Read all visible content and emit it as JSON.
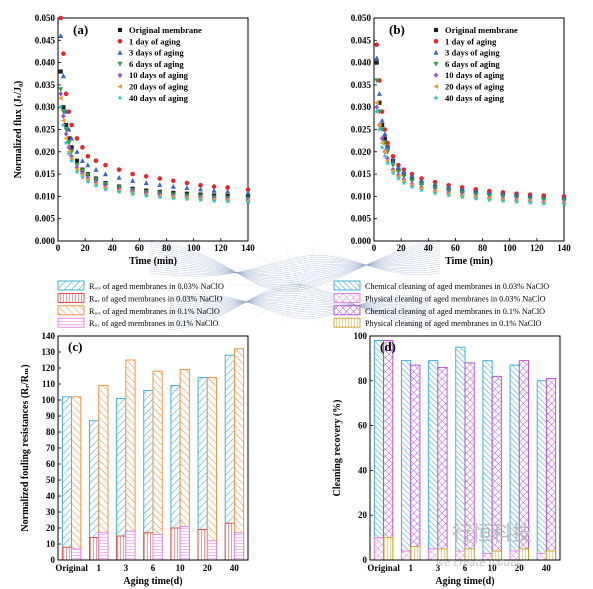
{
  "chart_data": [
    {
      "type": "scatter",
      "panel_label": "(a)",
      "xlabel": "Time (min)",
      "ylabel": "Normalized flux (Jₜ/J₀)",
      "xlim": [
        0,
        140
      ],
      "ylim": [
        0,
        0.05
      ],
      "xticks": [
        0,
        20,
        40,
        60,
        80,
        100,
        120,
        140
      ],
      "yticks": [
        0.0,
        0.005,
        0.01,
        0.015,
        0.02,
        0.025,
        0.03,
        0.035,
        0.04,
        0.045,
        0.05
      ],
      "yticklabels": [
        "0.000",
        "0.005",
        "0.010",
        "0.015",
        "0.020",
        "0.025",
        "0.030",
        "0.035",
        "0.040",
        "0.045",
        "0.050"
      ],
      "legend_position": "top-right",
      "series": [
        {
          "name": "Original membrane",
          "color": "#222222",
          "marker": "square",
          "x": [
            2,
            4,
            6,
            8,
            10,
            14,
            18,
            22,
            28,
            35,
            45,
            55,
            65,
            75,
            85,
            95,
            105,
            115,
            125,
            140
          ],
          "y": [
            0.038,
            0.03,
            0.026,
            0.023,
            0.021,
            0.018,
            0.016,
            0.015,
            0.014,
            0.013,
            0.0122,
            0.0117,
            0.0113,
            0.011,
            0.0108,
            0.0106,
            0.0104,
            0.0102,
            0.0101,
            0.01
          ]
        },
        {
          "name": "1 day of aging",
          "color": "#e8262a",
          "marker": "circle",
          "x": [
            2,
            4,
            6,
            8,
            10,
            14,
            18,
            22,
            28,
            35,
            45,
            55,
            65,
            75,
            85,
            95,
            105,
            115,
            125,
            140
          ],
          "y": [
            0.05,
            0.042,
            0.033,
            0.029,
            0.026,
            0.023,
            0.021,
            0.019,
            0.018,
            0.017,
            0.016,
            0.015,
            0.0145,
            0.014,
            0.0135,
            0.013,
            0.0125,
            0.0122,
            0.012,
            0.0115
          ]
        },
        {
          "name": "3 days of aging",
          "color": "#3366cc",
          "marker": "triangle",
          "x": [
            2,
            4,
            6,
            8,
            10,
            14,
            18,
            22,
            28,
            35,
            45,
            55,
            65,
            75,
            85,
            95,
            105,
            115,
            125,
            140
          ],
          "y": [
            0.046,
            0.037,
            0.029,
            0.025,
            0.023,
            0.02,
            0.018,
            0.017,
            0.016,
            0.015,
            0.0142,
            0.0135,
            0.013,
            0.0126,
            0.0122,
            0.0119,
            0.0116,
            0.0113,
            0.0111,
            0.0108
          ]
        },
        {
          "name": "6 days of aging",
          "color": "#2e9e4a",
          "marker": "triangle-down",
          "x": [
            2,
            4,
            6,
            8,
            10,
            14,
            18,
            22,
            28,
            35,
            45,
            55,
            65,
            75,
            85,
            95,
            105,
            115,
            125,
            140
          ],
          "y": [
            0.034,
            0.029,
            0.025,
            0.022,
            0.02,
            0.017,
            0.0158,
            0.0148,
            0.0138,
            0.0128,
            0.012,
            0.0114,
            0.011,
            0.0107,
            0.0104,
            0.0102,
            0.01,
            0.0098,
            0.0097,
            0.0095
          ]
        },
        {
          "name": "10 days of aging",
          "color": "#9b59c6",
          "marker": "diamond",
          "x": [
            2,
            4,
            6,
            8,
            10,
            14,
            18,
            22,
            28,
            35,
            45,
            55,
            65,
            75,
            85,
            95,
            105,
            115,
            125,
            140
          ],
          "y": [
            0.033,
            0.028,
            0.024,
            0.021,
            0.019,
            0.0165,
            0.0152,
            0.0142,
            0.0132,
            0.0123,
            0.0116,
            0.0111,
            0.0107,
            0.0104,
            0.0101,
            0.0099,
            0.0097,
            0.0095,
            0.0094,
            0.0092
          ]
        },
        {
          "name": "20 days of aging",
          "color": "#f0a030",
          "marker": "triangle-left",
          "x": [
            2,
            4,
            6,
            8,
            10,
            14,
            18,
            22,
            28,
            35,
            45,
            55,
            65,
            75,
            85,
            95,
            105,
            115,
            125,
            140
          ],
          "y": [
            0.032,
            0.027,
            0.023,
            0.02,
            0.0185,
            0.016,
            0.0148,
            0.0138,
            0.0128,
            0.012,
            0.0113,
            0.0108,
            0.0104,
            0.0101,
            0.0099,
            0.0097,
            0.0095,
            0.0093,
            0.0092,
            0.009
          ]
        },
        {
          "name": "40 days of aging",
          "color": "#27c4c4",
          "marker": "star",
          "x": [
            2,
            4,
            6,
            8,
            10,
            14,
            18,
            22,
            28,
            35,
            45,
            55,
            65,
            75,
            85,
            95,
            105,
            115,
            125,
            140
          ],
          "y": [
            0.03,
            0.026,
            0.022,
            0.0195,
            0.018,
            0.0155,
            0.0143,
            0.0133,
            0.0124,
            0.0116,
            0.011,
            0.0105,
            0.0101,
            0.0098,
            0.0096,
            0.0094,
            0.0092,
            0.009,
            0.0089,
            0.0087
          ]
        }
      ]
    },
    {
      "type": "scatter",
      "panel_label": "(b)",
      "xlabel": "Time (min)",
      "ylabel": "",
      "xlim": [
        0,
        140
      ],
      "ylim": [
        0,
        0.05
      ],
      "xticks": [
        0,
        20,
        40,
        60,
        80,
        100,
        120,
        140
      ],
      "yticks": [
        0.0,
        0.005,
        0.01,
        0.015,
        0.02,
        0.025,
        0.03,
        0.035,
        0.04,
        0.045,
        0.05
      ],
      "yticklabels": [
        "0.000",
        "0.005",
        "0.010",
        "0.015",
        "0.020",
        "0.025",
        "0.030",
        "0.035",
        "0.040",
        "0.045",
        "0.050"
      ],
      "legend_position": "top-right",
      "series": [
        {
          "name": "Original membrane",
          "color": "#222222",
          "marker": "square",
          "x": [
            2,
            4,
            6,
            8,
            10,
            14,
            18,
            22,
            28,
            35,
            45,
            55,
            65,
            75,
            85,
            95,
            105,
            115,
            125,
            140
          ],
          "y": [
            0.04,
            0.031,
            0.026,
            0.023,
            0.021,
            0.018,
            0.016,
            0.015,
            0.014,
            0.013,
            0.0122,
            0.0116,
            0.0112,
            0.0109,
            0.0107,
            0.0105,
            0.0103,
            0.0101,
            0.01,
            0.0098
          ]
        },
        {
          "name": "1 day of aging",
          "color": "#e8262a",
          "marker": "circle",
          "x": [
            2,
            4,
            6,
            8,
            10,
            14,
            18,
            22,
            28,
            35,
            45,
            55,
            65,
            75,
            85,
            95,
            105,
            115,
            125,
            140
          ],
          "y": [
            0.044,
            0.036,
            0.029,
            0.025,
            0.022,
            0.019,
            0.017,
            0.016,
            0.015,
            0.014,
            0.0132,
            0.0125,
            0.012,
            0.0116,
            0.0112,
            0.0109,
            0.0106,
            0.0104,
            0.0102,
            0.01
          ]
        },
        {
          "name": "3 days of aging",
          "color": "#3366cc",
          "marker": "triangle",
          "x": [
            2,
            4,
            6,
            8,
            10,
            14,
            18,
            22,
            28,
            35,
            45,
            55,
            65,
            75,
            85,
            95,
            105,
            115,
            125,
            140
          ],
          "y": [
            0.041,
            0.033,
            0.027,
            0.024,
            0.021,
            0.018,
            0.0165,
            0.0155,
            0.0145,
            0.0135,
            0.0126,
            0.012,
            0.0115,
            0.0111,
            0.0108,
            0.0105,
            0.0102,
            0.01,
            0.0098,
            0.0096
          ]
        },
        {
          "name": "6 days of aging",
          "color": "#2e9e4a",
          "marker": "triangle-down",
          "x": [
            2,
            4,
            6,
            8,
            10,
            14,
            18,
            22,
            28,
            35,
            45,
            55,
            65,
            75,
            85,
            95,
            105,
            115,
            125,
            140
          ],
          "y": [
            0.036,
            0.029,
            0.025,
            0.022,
            0.02,
            0.017,
            0.0155,
            0.0145,
            0.0135,
            0.0126,
            0.0118,
            0.0112,
            0.0108,
            0.0104,
            0.0101,
            0.0099,
            0.0096,
            0.0094,
            0.0092,
            0.009
          ]
        },
        {
          "name": "10 days of aging",
          "color": "#9b59c6",
          "marker": "diamond",
          "x": [
            2,
            4,
            6,
            8,
            10,
            14,
            18,
            22,
            28,
            35,
            45,
            55,
            65,
            75,
            85,
            95,
            105,
            115,
            125,
            140
          ],
          "y": [
            0.03,
            0.026,
            0.023,
            0.02,
            0.0185,
            0.016,
            0.0148,
            0.0138,
            0.0128,
            0.012,
            0.0112,
            0.0107,
            0.0103,
            0.01,
            0.0097,
            0.0095,
            0.0092,
            0.009,
            0.0088,
            0.0086
          ]
        },
        {
          "name": "20 days of aging",
          "color": "#f0a030",
          "marker": "triangle-left",
          "x": [
            2,
            4,
            6,
            8,
            10,
            14,
            18,
            22,
            28,
            35,
            45,
            55,
            65,
            75,
            85,
            95,
            105,
            115,
            125,
            140
          ],
          "y": [
            0.031,
            0.026,
            0.022,
            0.02,
            0.018,
            0.0157,
            0.0145,
            0.0135,
            0.0126,
            0.0118,
            0.0111,
            0.0106,
            0.0102,
            0.0099,
            0.0096,
            0.0093,
            0.0091,
            0.0089,
            0.0087,
            0.0085
          ]
        },
        {
          "name": "40 days of aging",
          "color": "#27c4c4",
          "marker": "star",
          "x": [
            2,
            4,
            6,
            8,
            10,
            14,
            18,
            22,
            28,
            35,
            45,
            55,
            65,
            75,
            85,
            95,
            105,
            115,
            125,
            140
          ],
          "y": [
            0.029,
            0.025,
            0.021,
            0.019,
            0.0175,
            0.0152,
            0.014,
            0.013,
            0.0121,
            0.0114,
            0.0107,
            0.0102,
            0.0098,
            0.0095,
            0.0092,
            0.009,
            0.0088,
            0.0086,
            0.0084,
            0.0082
          ]
        }
      ]
    },
    {
      "type": "bar",
      "panel_label": "(c)",
      "xlabel": "Aging time(d)",
      "ylabel": "Normalized fouling resistances (Rᵣ/Rₘ)",
      "categories": [
        "Original",
        "1",
        "3",
        "6",
        "10",
        "20",
        "40"
      ],
      "ylim": [
        0,
        140
      ],
      "yticks": [
        0,
        10,
        20,
        30,
        40,
        50,
        60,
        70,
        80,
        90,
        100,
        110,
        120,
        130,
        140
      ],
      "legend_position": "top",
      "series": [
        {
          "name": "Rᵣₑᵥ of aged membranes in 0.03% NaClO",
          "color": "#2aa8d8",
          "values": [
            102,
            87,
            101,
            106,
            109,
            114,
            128
          ]
        },
        {
          "name": "Rᵢᵣᵣ of aged membranes in 0.03% NaClO",
          "color": "#e23a3a",
          "values": [
            8,
            14,
            15,
            17,
            20,
            19,
            23
          ]
        },
        {
          "name": "Rᵣₑᵥ of aged membranes in 0.1% NaClO",
          "color": "#f08a30",
          "values": [
            102,
            109,
            125,
            118,
            119,
            114,
            132
          ]
        },
        {
          "name": "Rᵢᵣᵣ of aged membranes in 0.1% NaClO",
          "color": "#e879e8",
          "values": [
            7,
            17,
            18,
            16,
            21,
            12,
            17
          ]
        }
      ]
    },
    {
      "type": "bar",
      "panel_label": "(d)",
      "xlabel": "Aging time(d)",
      "ylabel": "Cleaning recovery (%)",
      "categories": [
        "Original",
        "1",
        "3",
        "6",
        "10",
        "20",
        "40"
      ],
      "ylim": [
        0,
        100
      ],
      "yticks": [
        0,
        20,
        40,
        60,
        80,
        100
      ],
      "legend_position": "top",
      "series": [
        {
          "name": "Chemical cleaning of aged membranes in 0.03% NaClO",
          "color": "#2aa8d8",
          "values": [
            98,
            89,
            89,
            95,
            89,
            87,
            80
          ]
        },
        {
          "name": "Physical cleaning of aged membranes in 0.03% NaClO",
          "color": "#e879e8",
          "values": [
            10,
            4,
            5,
            4,
            3,
            4,
            3
          ]
        },
        {
          "name": "Chemical cleaning of aged membranes in 0.1% NaClO",
          "color": "#b845d8",
          "values": [
            98,
            87,
            86,
            88,
            82,
            89,
            81
          ]
        },
        {
          "name": "Physical cleaning of aged membranes in 0.1% NaClO",
          "color": "#c9a41e",
          "values": [
            10,
            6,
            5,
            5,
            4,
            5,
            4
          ]
        }
      ]
    }
  ],
  "watermark": {
    "cn": "行恒科技",
    "en": "we create values"
  }
}
